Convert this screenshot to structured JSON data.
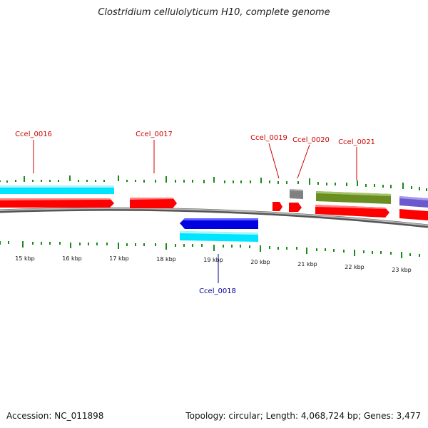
{
  "header": {
    "title": "Clostridium cellulolyticum H10, complete genome"
  },
  "footer": {
    "accession": "Accession: NC_011898",
    "stats": "Topology: circular; Length: 4,068,724 bp; Genes: 3,477"
  },
  "colors": {
    "forward_cds": "#ff0000",
    "reverse_cds": "#0000e0",
    "forward_gene_label": "#cc0000",
    "reverse_gene_label": "#000099",
    "backbone": "#8c8c8c",
    "ticks": "#1a8a1a",
    "cyan": "#00e5ff",
    "olive": "#6b8e23",
    "gray": "#808080",
    "purple": "#6a5acd"
  },
  "scale": {
    "unit": "kbp",
    "labels": [
      "15 kbp",
      "16 kbp",
      "17 kbp",
      "18 kbp",
      "19 kbp",
      "20 kbp",
      "21 kbp",
      "22 kbp",
      "23 kbp"
    ]
  },
  "genes": [
    {
      "label": "Ccel_0016",
      "strand": "forward"
    },
    {
      "label": "Ccel_0017",
      "strand": "forward"
    },
    {
      "label": "Ccel_0018",
      "strand": "reverse"
    },
    {
      "label": "Ccel_0019",
      "strand": "forward"
    },
    {
      "label": "Ccel_0020",
      "strand": "forward"
    },
    {
      "label": "Ccel_0021",
      "strand": "forward"
    }
  ]
}
